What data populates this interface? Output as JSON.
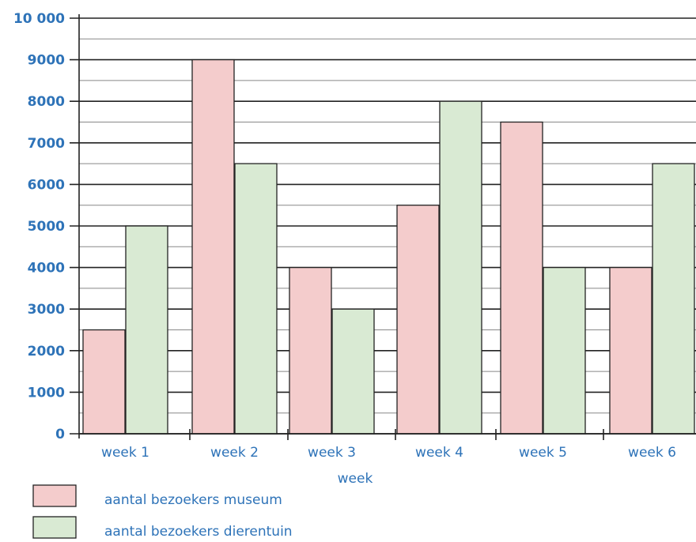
{
  "chart_data": {
    "type": "bar",
    "categories": [
      "week 1",
      "week 2",
      "week 3",
      "week 4",
      "week 5",
      "week 6"
    ],
    "series": [
      {
        "name": "aantal bezoekers museum",
        "values": [
          2500,
          9000,
          4000,
          5500,
          7500,
          4000
        ],
        "color": "#f4cccc"
      },
      {
        "name": "aantal bezoekers dierentuin",
        "values": [
          5000,
          6500,
          3000,
          8000,
          4000,
          6500
        ],
        "color": "#d9ead3"
      }
    ],
    "xlabel": "week",
    "ylabel": "",
    "ylim": [
      0,
      10000
    ],
    "y_ticks": [
      {
        "value": 0,
        "label": "0"
      },
      {
        "value": 1000,
        "label": "1000"
      },
      {
        "value": 2000,
        "label": "2000"
      },
      {
        "value": 3000,
        "label": "3000"
      },
      {
        "value": 4000,
        "label": "4000"
      },
      {
        "value": 5000,
        "label": "5000"
      },
      {
        "value": 6000,
        "label": "6000"
      },
      {
        "value": 7000,
        "label": "7000"
      },
      {
        "value": 8000,
        "label": "8000"
      },
      {
        "value": 9000,
        "label": "9000"
      },
      {
        "value": 10000,
        "label": "10 000"
      }
    ],
    "minor_grid_step": 500,
    "grid": true,
    "legend_placement": "bottom-left",
    "label_color": "#2e73b8"
  }
}
